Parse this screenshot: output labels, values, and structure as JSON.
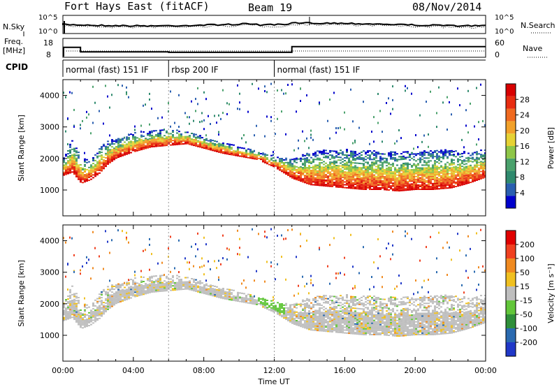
{
  "header": {
    "station": "Fort Hays East (fitACF)",
    "beam": "Beam 19",
    "date": "08/Nov/2014"
  },
  "noise_panel": {
    "left_label": "N.Sky",
    "right_label": "N.Search",
    "left_ticks": [
      "10^5",
      "10^0"
    ],
    "right_ticks": [
      "10^5",
      "10^0"
    ]
  },
  "freq_panel": {
    "left_label_1": "Freq.",
    "left_label_2": "[MHz]",
    "right_label": "Nave",
    "left_ticks": [
      "18",
      "8"
    ],
    "right_ticks": [
      "60",
      "0"
    ],
    "freq_profile": [
      {
        "start_hour": 0.0,
        "end_hour": 1.0,
        "mhz": 13.6
      },
      {
        "start_hour": 1.0,
        "end_hour": 6.0,
        "mhz": 10.6
      },
      {
        "start_hour": 6.0,
        "end_hour": 13.0,
        "mhz": 10.3
      },
      {
        "start_hour": 13.0,
        "end_hour": 24.0,
        "mhz": 14.0
      }
    ]
  },
  "cpid": {
    "label": "CPID",
    "segments": [
      {
        "start_hour": 0.0,
        "end_hour": 6.0,
        "text": "normal (fast) 151 IF"
      },
      {
        "start_hour": 6.0,
        "end_hour": 12.0,
        "text": "rbsp 200 IF"
      },
      {
        "start_hour": 12.0,
        "end_hour": 24.0,
        "text": "normal (fast) 151 IF"
      }
    ]
  },
  "chart_data": [
    {
      "type": "heatmap",
      "name": "Power",
      "ylabel": "Slant Range [km]",
      "ylim": [
        180,
        4500
      ],
      "yticks": [
        1000,
        2000,
        3000,
        4000
      ],
      "xlim_hours": [
        0,
        24
      ],
      "colorbar_label": "Power [dB]",
      "colorbar_ticks": [
        "28",
        "24",
        "20",
        "16",
        "12",
        "8",
        "4"
      ],
      "colorbar_colors": [
        "#0000cc",
        "#2a5fb0",
        "#2f8a6e",
        "#4aa16c",
        "#8ec648",
        "#e6d234",
        "#f2a12a",
        "#f06a20",
        "#e82c10",
        "#d80000"
      ],
      "echo_band": {
        "hours": [
          0,
          0.5,
          1,
          1.5,
          2,
          2.5,
          3,
          4,
          5,
          6,
          7,
          8,
          9,
          10,
          11,
          12,
          13,
          14,
          15,
          16,
          17,
          18,
          19,
          20,
          21,
          22,
          23,
          24
        ],
        "lower_km": [
          1450,
          1550,
          1200,
          1300,
          1500,
          1800,
          2000,
          2200,
          2350,
          2400,
          2450,
          2300,
          2150,
          2050,
          1950,
          1700,
          1350,
          1150,
          1100,
          1050,
          1000,
          1000,
          950,
          1000,
          1000,
          1050,
          1200,
          1400
        ],
        "upper_km": [
          2000,
          2600,
          2000,
          1900,
          2300,
          2550,
          2600,
          2800,
          2850,
          2900,
          2850,
          2650,
          2500,
          2350,
          2200,
          2050,
          1950,
          2200,
          2250,
          2300,
          2250,
          2200,
          2200,
          2200,
          2250,
          2250,
          2200,
          2300
        ]
      }
    },
    {
      "type": "heatmap",
      "name": "Velocity",
      "ylabel": "Slant Range [km]",
      "ylim": [
        180,
        4500
      ],
      "yticks": [
        1000,
        2000,
        3000,
        4000
      ],
      "xlim_hours": [
        0,
        24
      ],
      "colorbar_label": "Velocity [m s⁻¹]",
      "colorbar_ticks": [
        "200",
        "100",
        "50",
        "15",
        "-15",
        "-50",
        "-100",
        "-200"
      ],
      "colorbar_colors": [
        "#2038c8",
        "#2a6ab0",
        "#2f8f3a",
        "#62c63a",
        "#bebebe",
        "#f0c020",
        "#f08a20",
        "#f04020",
        "#e00000"
      ],
      "xticks": [
        "00:00",
        "04:00",
        "08:00",
        "12:00",
        "16:00",
        "20:00",
        "00:00"
      ],
      "xlabel": "Time UT"
    }
  ]
}
